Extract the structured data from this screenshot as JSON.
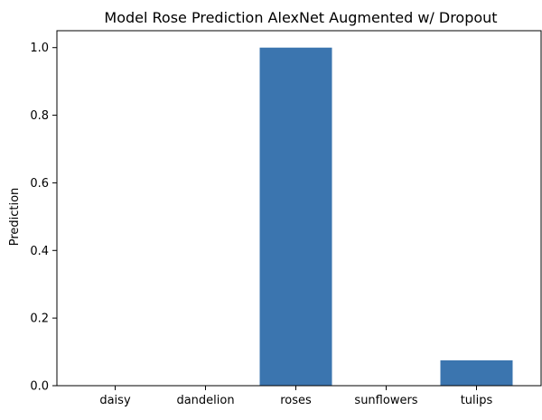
{
  "chart_data": {
    "type": "bar",
    "title": "Model Rose Prediction AlexNet Augmented w/ Dropout",
    "xlabel": "",
    "ylabel": "Prediction",
    "categories": [
      "daisy",
      "dandelion",
      "roses",
      "sunflowers",
      "tulips"
    ],
    "values": [
      0.0,
      0.0,
      1.0,
      0.0,
      0.075
    ],
    "ylim": [
      0,
      1.05
    ],
    "yticks": [
      "0.0",
      "0.2",
      "0.4",
      "0.6",
      "0.8",
      "1.0"
    ],
    "bar_color": "#3b75af",
    "grid": false,
    "legend": "none"
  }
}
